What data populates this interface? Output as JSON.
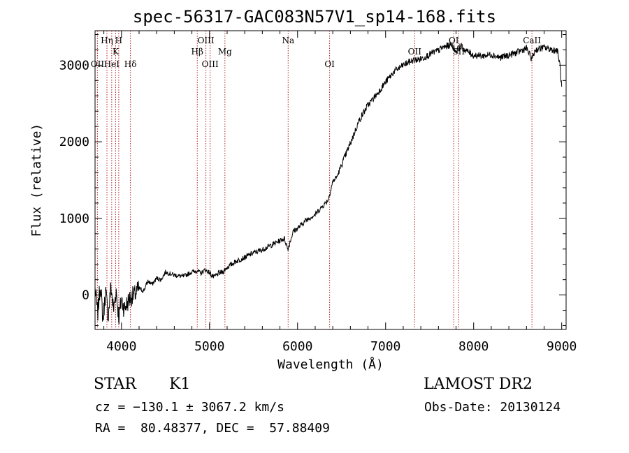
{
  "title": "spec-56317-GAC083N57V1_sp14-168.fits",
  "info": {
    "class": "STAR",
    "subclass": "K1",
    "survey": "LAMOST DR2",
    "cz": "cz = −130.1 ± 3067.2 km/s",
    "obs_date": "Obs-Date: 20130124",
    "radec": "RA =  80.48377, DEC =  57.88409"
  },
  "colors": {
    "axis": "#000000",
    "line_marker": "#b22222",
    "spectrum": "#000000"
  },
  "chart_data": {
    "type": "line",
    "title": "spec-56317-GAC083N57V1_sp14-168.fits",
    "xlabel": "Wavelength (Å)",
    "ylabel": "Flux (relative)",
    "xlim": [
      3700,
      9050
    ],
    "ylim": [
      -450,
      3450
    ],
    "xticks": [
      4000,
      5000,
      6000,
      7000,
      8000,
      9000
    ],
    "yticks": [
      0,
      1000,
      2000,
      3000
    ],
    "series": [
      {
        "x": [
          3700,
          3730,
          3760,
          3790,
          3820,
          3850,
          3880,
          3910,
          3940,
          3970,
          4000,
          4030,
          4060,
          4100,
          4150,
          4200,
          4250,
          4300,
          4350,
          4400,
          4450,
          4500,
          4600,
          4700,
          4800,
          4860,
          4900,
          4950,
          5000,
          5050,
          5100,
          5150,
          5200,
          5300,
          5400,
          5500,
          5600,
          5700,
          5800,
          5850,
          5890,
          5950,
          6000,
          6100,
          6200,
          6300,
          6350,
          6400,
          6450,
          6500,
          6600,
          6700,
          6800,
          6900,
          7000,
          7100,
          7200,
          7300,
          7400,
          7450,
          7500,
          7550,
          7600,
          7650,
          7700,
          7750,
          7800,
          7850,
          7900,
          8000,
          8100,
          8200,
          8300,
          8400,
          8500,
          8600,
          8660,
          8700,
          8800,
          8900,
          8950,
          8980,
          9000
        ],
        "y": [
          80,
          -250,
          150,
          -330,
          50,
          -280,
          120,
          -200,
          60,
          -300,
          -50,
          -180,
          -120,
          -30,
          0,
          90,
          50,
          180,
          140,
          220,
          200,
          300,
          260,
          240,
          300,
          320,
          280,
          330,
          290,
          230,
          280,
          300,
          360,
          440,
          490,
          550,
          590,
          650,
          710,
          740,
          600,
          830,
          870,
          980,
          1050,
          1180,
          1250,
          1480,
          1550,
          1700,
          1980,
          2280,
          2480,
          2620,
          2780,
          2920,
          3000,
          3060,
          3080,
          3110,
          3140,
          3170,
          3190,
          3230,
          3250,
          3270,
          3180,
          3250,
          3200,
          3130,
          3120,
          3140,
          3100,
          3130,
          3170,
          3220,
          3080,
          3200,
          3230,
          3200,
          3190,
          3000,
          2700
        ]
      }
    ],
    "lines": [
      {
        "label": "OII",
        "x": 3727,
        "row": 3
      },
      {
        "label": "Hη",
        "x": 3835,
        "row": 1
      },
      {
        "label": "HeI",
        "x": 3889,
        "row": 3
      },
      {
        "label": "K",
        "x": 3934,
        "row": 2
      },
      {
        "label": "H",
        "x": 3969,
        "row": 1
      },
      {
        "label": "Hδ",
        "x": 4102,
        "row": 3
      },
      {
        "label": "Hβ",
        "x": 4861,
        "row": 2
      },
      {
        "label": "OIII",
        "x": 4959,
        "row": 1
      },
      {
        "label": "OIII",
        "x": 5007,
        "row": 3
      },
      {
        "label": "Mg",
        "x": 5175,
        "row": 2
      },
      {
        "label": "Na",
        "x": 5893,
        "row": 1
      },
      {
        "label": "OI",
        "x": 6364,
        "row": 3
      },
      {
        "label": "OII",
        "x": 7330,
        "row": 2
      },
      {
        "label": "OI",
        "x": 7774,
        "row": 1
      },
      {
        "label": "SII",
        "x": 7830,
        "row": 2
      },
      {
        "label": "CaII",
        "x": 8662,
        "row": 1
      }
    ]
  }
}
